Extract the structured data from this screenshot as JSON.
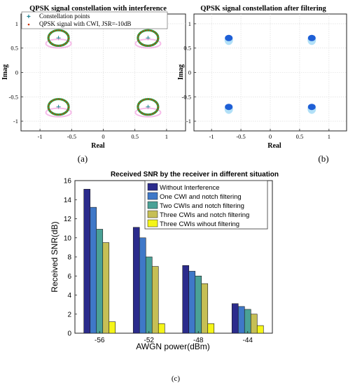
{
  "panels": {
    "a": {
      "label": "(a)",
      "chart_data": {
        "type": "scatter",
        "title": "QPSK signal constellation with interference",
        "xlabel": "Real",
        "ylabel": "Imag",
        "xlim": [
          -1.3,
          1.3
        ],
        "ylim": [
          -1.2,
          1.2
        ],
        "xticks": [
          "-1",
          "-0.5",
          "0",
          "0.5",
          "1"
        ],
        "yticks": [
          "1",
          "0.5",
          "0",
          "-0.5",
          "-1"
        ],
        "legend_position": "top-left",
        "series": [
          {
            "name": "Constellation points",
            "color": "#1a7f8f",
            "marker": "plus",
            "points": [
              [
                0.707,
                0.707
              ],
              [
                -0.707,
                0.707
              ],
              [
                0.707,
                -0.707
              ],
              [
                -0.707,
                -0.707
              ]
            ]
          },
          {
            "name": "QPSK signal with CWI, JSR=-10dB",
            "color": "#cc3300",
            "marker": "ring",
            "ring_centers": [
              [
                0.707,
                0.707
              ],
              [
                -0.707,
                0.707
              ],
              [
                0.707,
                -0.707
              ],
              [
                -0.707,
                -0.707
              ]
            ],
            "ring_radius": 0.16
          }
        ]
      }
    },
    "b": {
      "label": "(b)",
      "chart_data": {
        "type": "scatter",
        "title": "QPSK signal constellation after filtering",
        "xlabel": "Real",
        "ylabel": "Imag",
        "xlim": [
          -1.3,
          1.3
        ],
        "ylim": [
          -1.2,
          1.2
        ],
        "xticks": [
          "-1",
          "-0.5",
          "0",
          "0.5",
          "1"
        ],
        "yticks": [
          "1",
          "0.5",
          "0",
          "-0.5",
          "-1"
        ],
        "series": [
          {
            "name": "",
            "color": "#1e5fd6",
            "marker": "cluster",
            "points": [
              [
                0.707,
                0.707
              ],
              [
                -0.707,
                0.707
              ],
              [
                0.707,
                -0.707
              ],
              [
                -0.707,
                -0.707
              ]
            ]
          }
        ]
      }
    },
    "c": {
      "label": "(c)",
      "chart_data": {
        "type": "bar",
        "title": "Received SNR by the receiver in different situation",
        "xlabel": "AWGN power(dBm)",
        "ylabel": "Received SNR(dB)",
        "categories": [
          "-56",
          "-52",
          "-48",
          "-44"
        ],
        "ylim": [
          0,
          16
        ],
        "yticks": [
          "0",
          "2",
          "4",
          "6",
          "8",
          "10",
          "12",
          "14",
          "16"
        ],
        "legend_position": "top-right",
        "series": [
          {
            "name": "Without Interference",
            "color": "#2b2b8c",
            "values": [
              15.1,
              11.1,
              7.1,
              3.1
            ]
          },
          {
            "name": "One CWI and notch filtering",
            "color": "#3f78c8",
            "values": [
              13.2,
              10.0,
              6.5,
              2.8
            ]
          },
          {
            "name": "Two CWIs and notch filtering",
            "color": "#4aa196",
            "values": [
              10.9,
              8.0,
              6.0,
              2.5
            ]
          },
          {
            "name": "Three CWIs and notch filtering",
            "color": "#c6bf55",
            "values": [
              9.5,
              7.0,
              5.2,
              2.0
            ]
          },
          {
            "name": "Three CWIs wihout filtering",
            "color": "#f5f518",
            "values": [
              1.2,
              1.0,
              1.0,
              0.8
            ]
          }
        ]
      }
    }
  }
}
